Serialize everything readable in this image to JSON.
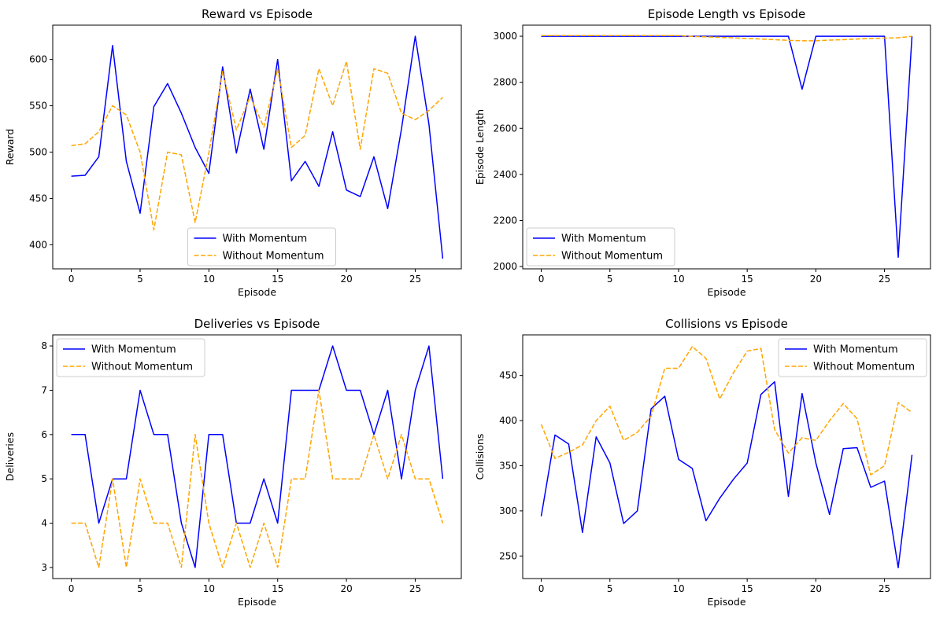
{
  "chart_data": [
    {
      "type": "line",
      "title": "Reward vs Episode",
      "xlabel": "Episode",
      "ylabel": "Reward",
      "xlim": [
        -1.35,
        28.35
      ],
      "ylim": [
        374,
        637
      ],
      "xticks": [
        0,
        5,
        10,
        15,
        20,
        25
      ],
      "yticks": [
        400,
        450,
        500,
        550,
        600
      ],
      "legend_position": "lower-center",
      "x": [
        0,
        1,
        2,
        3,
        4,
        5,
        6,
        7,
        8,
        9,
        10,
        11,
        12,
        13,
        14,
        15,
        16,
        17,
        18,
        19,
        20,
        21,
        22,
        23,
        24,
        25,
        26,
        27
      ],
      "series": [
        {
          "name": "With Momentum",
          "color": "#0000ff",
          "style": "solid",
          "values": [
            474,
            475,
            495,
            615,
            490,
            434,
            549,
            574,
            542,
            505,
            477,
            592,
            499,
            568,
            503,
            600,
            469,
            490,
            463,
            522,
            459,
            452,
            495,
            439,
            525,
            625,
            530,
            385
          ]
        },
        {
          "name": "Without Momentum",
          "color": "#ffa500",
          "style": "dashed",
          "values": [
            507,
            509,
            522,
            550,
            540,
            500,
            416,
            500,
            497,
            424,
            499,
            587,
            524,
            560,
            527,
            590,
            505,
            518,
            590,
            550,
            598,
            503,
            590,
            585,
            542,
            535,
            545,
            559
          ]
        }
      ]
    },
    {
      "type": "line",
      "title": "Episode Length vs Episode",
      "xlabel": "Episode",
      "ylabel": "Episode Length",
      "xlim": [
        -1.35,
        28.35
      ],
      "ylim": [
        1990,
        3048
      ],
      "xticks": [
        0,
        5,
        10,
        15,
        20,
        25
      ],
      "yticks": [
        2000,
        2200,
        2400,
        2600,
        2800,
        3000
      ],
      "legend_position": "lower-left",
      "x": [
        0,
        1,
        2,
        3,
        4,
        5,
        6,
        7,
        8,
        9,
        10,
        11,
        12,
        13,
        14,
        15,
        16,
        17,
        18,
        19,
        20,
        21,
        22,
        23,
        24,
        25,
        26,
        27
      ],
      "series": [
        {
          "name": "With Momentum",
          "color": "#0000ff",
          "style": "solid",
          "values": [
            3000,
            3000,
            3000,
            3000,
            3000,
            3000,
            3000,
            3000,
            3000,
            3000,
            3000,
            3000,
            3000,
            3000,
            3000,
            3000,
            3000,
            3000,
            3000,
            2770,
            3000,
            3000,
            3000,
            3000,
            3000,
            3000,
            2040,
            3000
          ]
        },
        {
          "name": "Without Momentum",
          "color": "#ffa500",
          "style": "dashed",
          "values": [
            3003,
            3003,
            3003,
            3003,
            3003,
            3003,
            3003,
            3003,
            3003,
            3003,
            3003,
            2999,
            2997,
            2995,
            2993,
            2990,
            2988,
            2985,
            2982,
            2980,
            2980,
            2983,
            2985,
            2988,
            2990,
            2992,
            2993,
            3000
          ]
        }
      ]
    },
    {
      "type": "line",
      "title": "Deliveries vs Episode",
      "xlabel": "Episode",
      "ylabel": "Deliveries",
      "xlim": [
        -1.35,
        28.35
      ],
      "ylim": [
        2.75,
        8.25
      ],
      "xticks": [
        0,
        5,
        10,
        15,
        20,
        25
      ],
      "yticks": [
        3,
        4,
        5,
        6,
        7,
        8
      ],
      "legend_position": "upper-left",
      "x": [
        0,
        1,
        2,
        3,
        4,
        5,
        6,
        7,
        8,
        9,
        10,
        11,
        12,
        13,
        14,
        15,
        16,
        17,
        18,
        19,
        20,
        21,
        22,
        23,
        24,
        25,
        26,
        27
      ],
      "series": [
        {
          "name": "With Momentum",
          "color": "#0000ff",
          "style": "solid",
          "values": [
            6,
            6,
            4,
            5,
            5,
            7,
            6,
            6,
            4,
            3,
            6,
            6,
            4,
            4,
            5,
            4,
            7,
            7,
            7,
            8,
            7,
            7,
            6,
            7,
            5,
            7,
            8,
            5
          ]
        },
        {
          "name": "Without Momentum",
          "color": "#ffa500",
          "style": "dashed",
          "values": [
            4,
            4,
            3,
            5,
            3,
            5,
            4,
            4,
            3,
            6,
            4,
            3,
            4,
            3,
            4,
            3,
            5,
            5,
            7,
            5,
            5,
            5,
            6,
            5,
            6,
            5,
            5,
            4
          ]
        }
      ]
    },
    {
      "type": "line",
      "title": "Collisions vs Episode",
      "xlabel": "Episode",
      "ylabel": "Collisions",
      "xlim": [
        -1.35,
        28.35
      ],
      "ylim": [
        225,
        495
      ],
      "xticks": [
        0,
        5,
        10,
        15,
        20,
        25
      ],
      "yticks": [
        250,
        300,
        350,
        400,
        450
      ],
      "legend_position": "upper-right",
      "x": [
        0,
        1,
        2,
        3,
        4,
        5,
        6,
        7,
        8,
        9,
        10,
        11,
        12,
        13,
        14,
        15,
        16,
        17,
        18,
        19,
        20,
        21,
        22,
        23,
        24,
        25,
        26,
        27
      ],
      "series": [
        {
          "name": "With Momentum",
          "color": "#0000ff",
          "style": "solid",
          "values": [
            294,
            384,
            374,
            276,
            382,
            353,
            286,
            300,
            413,
            427,
            357,
            347,
            289,
            314,
            335,
            353,
            429,
            443,
            316,
            430,
            353,
            296,
            369,
            370,
            326,
            333,
            237,
            362
          ]
        },
        {
          "name": "Without Momentum",
          "color": "#ffa500",
          "style": "dashed",
          "values": [
            396,
            358,
            365,
            373,
            400,
            416,
            378,
            387,
            405,
            458,
            458,
            482,
            469,
            424,
            453,
            477,
            480,
            390,
            364,
            381,
            378,
            400,
            419,
            402,
            340,
            350,
            420,
            409
          ]
        }
      ]
    }
  ]
}
